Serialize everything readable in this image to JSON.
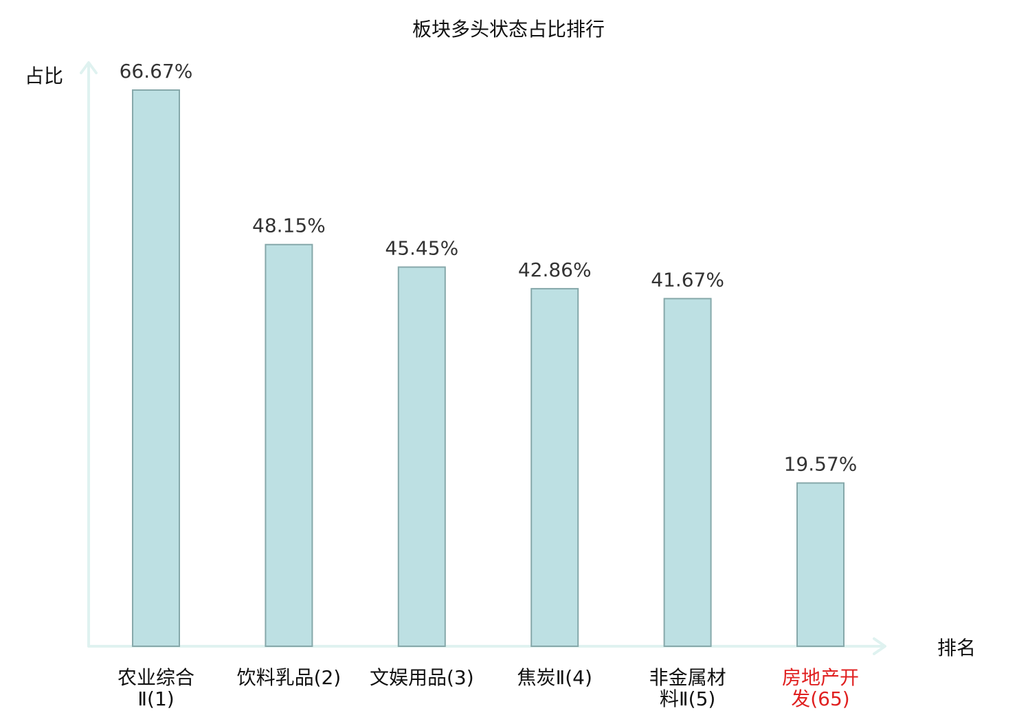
{
  "chart_data": {
    "type": "bar",
    "title": "板块多头状态占比排行",
    "ylabel": "占比",
    "xlabel": "排名",
    "ylim": [
      0,
      70
    ],
    "grid": false,
    "categories": [
      {
        "lines": [
          "农业综合",
          "Ⅱ(1)"
        ]
      },
      {
        "lines": [
          "饮料乳品(2)"
        ]
      },
      {
        "lines": [
          "文娱用品(3)"
        ]
      },
      {
        "lines": [
          "焦炭Ⅱ(4)"
        ]
      },
      {
        "lines": [
          "非金属材",
          "料Ⅱ(5)"
        ]
      },
      {
        "lines": [
          "房地产开",
          "发(65)"
        ],
        "highlight": true
      }
    ],
    "values": [
      66.67,
      48.15,
      45.45,
      42.86,
      41.67,
      19.57
    ],
    "value_labels": [
      "66.67%",
      "48.15%",
      "45.45%",
      "42.86%",
      "41.67%",
      "19.57%"
    ]
  },
  "colors": {
    "bar_fill": "#bde0e3",
    "bar_stroke": "#86a8aa",
    "axis": "#dff2f0",
    "text": "#111111",
    "value_text": "#333333",
    "highlight": "#e02020"
  }
}
